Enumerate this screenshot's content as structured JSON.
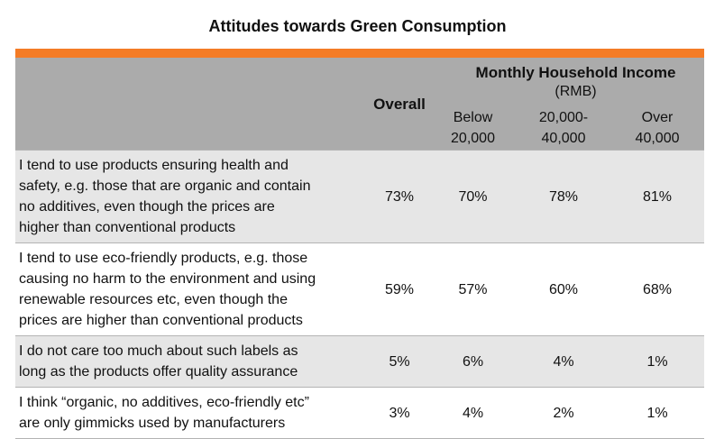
{
  "chart_data": {
    "type": "table",
    "title": "Attitudes towards Green Consumption",
    "group_header": "Monthly Household Income",
    "group_unit": "(RMB)",
    "columns": [
      "Overall",
      "Below 20,000",
      "20,000- 40,000",
      "Over 40,000"
    ],
    "column_lines": [
      [
        "Overall"
      ],
      [
        "Below",
        "20,000"
      ],
      [
        "20,000-",
        "40,000"
      ],
      [
        "Over",
        "40,000"
      ]
    ],
    "rows": [
      {
        "statement_lines": [
          "I tend to use products ensuring health and",
          "safety, e.g. those that are organic and contain",
          "no additives, even though the prices are",
          "higher than conventional products"
        ],
        "values": [
          "73%",
          "70%",
          "78%",
          "81%"
        ]
      },
      {
        "statement_lines": [
          "I tend to use eco-friendly products, e.g. those",
          "causing no harm to the environment and using",
          "renewable resources etc, even though the",
          "prices are higher than conventional products"
        ],
        "values": [
          "59%",
          "57%",
          "60%",
          "68%"
        ]
      },
      {
        "statement_lines": [
          "I do not care too much about such labels as",
          "long as the products offer quality assurance"
        ],
        "values": [
          "5%",
          "6%",
          "4%",
          "1%"
        ]
      },
      {
        "statement_lines": [
          "I think “organic, no additives, eco-friendly etc”",
          "are only gimmicks used by manufacturers"
        ],
        "values": [
          "3%",
          "4%",
          "2%",
          "1%"
        ]
      }
    ]
  },
  "colors": {
    "accent_bar": "#f47c26",
    "header_bg": "#ababab",
    "row_shade": "#e6e6e6",
    "row_plain": "#ffffff"
  }
}
